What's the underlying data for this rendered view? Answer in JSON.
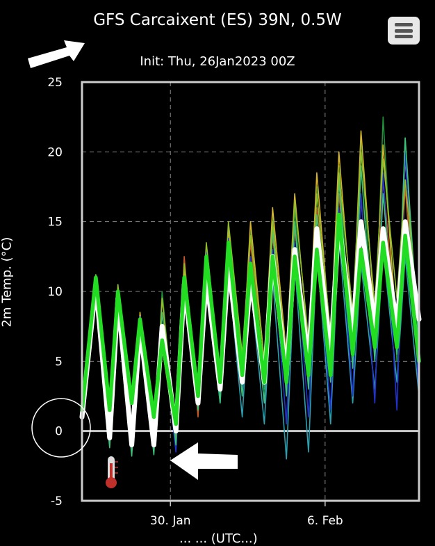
{
  "header": {
    "title": "GFS Carcaixent (ES) 39N, 0.5W",
    "subtitle": "Init: Thu, 26Jan2023 00Z",
    "menu_icon": "hamburger-menu-icon"
  },
  "annotations": {
    "arrow_top_icon": "arrow-up-right-icon",
    "arrow_bottom_icon": "arrow-left-icon",
    "circle_highlight": "zero-tick-highlight",
    "thermometer_icon": "thermometer-icon",
    "xlabel_partial": "...  ...  (UTC...)"
  },
  "colors": {
    "background": "#000000",
    "mean": "#ffffff",
    "control": "#22dd22",
    "member_palette": [
      "#1f8f3a",
      "#2aa0b0",
      "#d4b22a",
      "#c8582a",
      "#2233cc",
      "#3bc47a",
      "#8fbf2a",
      "#1a6fd0"
    ]
  },
  "chart_data": {
    "type": "line",
    "title": "GFS Carcaixent (ES) 39N, 0.5W",
    "subtitle": "Init: Thu, 26Jan2023 00Z",
    "ylabel": "2m Temp. (°C)",
    "xlabel": "",
    "ylim": [
      -5,
      25
    ],
    "yticks": [
      -5,
      0,
      5,
      10,
      15,
      20,
      25
    ],
    "xlim": [
      "2023-01-26T00",
      "2023-02-10T06"
    ],
    "xticks": [
      {
        "date": "2023-01-30",
        "label": "30. Jan"
      },
      {
        "date": "2023-02-06",
        "label": "6. Feb"
      }
    ],
    "grid": true,
    "daily_minmax_min_hour": 6,
    "daily_minmax_max_hour": 15,
    "series": [
      {
        "name": "",
        "role": "control",
        "x": [
          "2023-01-26T00",
          "2023-01-26T15",
          "2023-01-27T06",
          "2023-01-27T15",
          "2023-01-28T06",
          "2023-01-28T15",
          "2023-01-29T06",
          "2023-01-29T15",
          "2023-01-30T06",
          "2023-01-30T15",
          "2023-01-31T06",
          "2023-01-31T15",
          "2023-02-01T06",
          "2023-02-01T15",
          "2023-02-02T06",
          "2023-02-02T15",
          "2023-02-03T06",
          "2023-02-03T15",
          "2023-02-04T06",
          "2023-02-04T15",
          "2023-02-05T06",
          "2023-02-05T15",
          "2023-02-06T06",
          "2023-02-06T15",
          "2023-02-07T06",
          "2023-02-07T15",
          "2023-02-08T06",
          "2023-02-08T15",
          "2023-02-09T06",
          "2023-02-09T15",
          "2023-02-10T06"
        ],
        "values": [
          1.5,
          11.0,
          1.5,
          10.0,
          2.0,
          8.0,
          1.0,
          6.5,
          0.5,
          11.0,
          2.5,
          12.5,
          3.5,
          13.5,
          4.0,
          12.0,
          3.5,
          12.5,
          3.5,
          12.5,
          4.0,
          13.0,
          4.0,
          15.5,
          5.5,
          13.0,
          6.0,
          13.5,
          6.0,
          14.0,
          5.0
        ]
      },
      {
        "name": "",
        "role": "mean",
        "x": [
          "2023-01-26T00",
          "2023-01-26T15",
          "2023-01-27T06",
          "2023-01-27T15",
          "2023-01-28T06",
          "2023-01-28T15",
          "2023-01-29T06",
          "2023-01-29T15",
          "2023-01-30T06",
          "2023-01-30T15",
          "2023-01-31T06",
          "2023-01-31T15",
          "2023-02-01T06",
          "2023-02-01T15",
          "2023-02-02T06",
          "2023-02-02T15",
          "2023-02-03T06",
          "2023-02-03T15",
          "2023-02-04T06",
          "2023-02-04T15",
          "2023-02-05T06",
          "2023-02-05T15",
          "2023-02-06T06",
          "2023-02-06T15",
          "2023-02-07T06",
          "2023-02-07T15",
          "2023-02-08T06",
          "2023-02-08T15",
          "2023-02-09T06",
          "2023-02-09T15",
          "2023-02-10T06"
        ],
        "values": [
          1.0,
          10.5,
          -0.5,
          9.5,
          -1.0,
          7.5,
          -1.0,
          7.5,
          0.0,
          10.5,
          2.0,
          11.0,
          3.0,
          12.0,
          3.5,
          11.0,
          3.5,
          12.5,
          4.0,
          13.0,
          5.0,
          14.5,
          5.5,
          15.0,
          7.0,
          15.0,
          7.5,
          14.5,
          7.5,
          15.0,
          8.0
        ]
      },
      {
        "name": "",
        "role": "member",
        "x": [
          "2023-01-26T00",
          "2023-01-26T15",
          "2023-01-27T06",
          "2023-01-27T15",
          "2023-01-28T06",
          "2023-01-28T15",
          "2023-01-29T06",
          "2023-01-29T15",
          "2023-01-30T06",
          "2023-01-30T15",
          "2023-01-31T06",
          "2023-01-31T15",
          "2023-02-01T06",
          "2023-02-01T15",
          "2023-02-02T06",
          "2023-02-02T15",
          "2023-02-03T06",
          "2023-02-03T15",
          "2023-02-04T06",
          "2023-02-04T15",
          "2023-02-05T06",
          "2023-02-05T15",
          "2023-02-06T06",
          "2023-02-06T15",
          "2023-02-07T06",
          "2023-02-07T15",
          "2023-02-08T06",
          "2023-02-08T15",
          "2023-02-09T06",
          "2023-02-09T15",
          "2023-02-10T06"
        ],
        "values": [
          1.0,
          10.0,
          -1.0,
          9.0,
          -1.5,
          8.5,
          -1.5,
          10.0,
          -0.5,
          12.0,
          1.5,
          13.0,
          2.5,
          14.0,
          3.0,
          14.5,
          3.0,
          15.5,
          3.0,
          16.0,
          3.5,
          17.5,
          4.0,
          19.0,
          5.0,
          21.0,
          5.5,
          22.5,
          5.0,
          21.0,
          4.0
        ]
      },
      {
        "name": "",
        "role": "member",
        "x": [
          "2023-01-26T00",
          "2023-01-26T15",
          "2023-01-27T06",
          "2023-01-27T15",
          "2023-01-28T06",
          "2023-01-28T15",
          "2023-01-29T06",
          "2023-01-29T15",
          "2023-01-30T06",
          "2023-01-30T15",
          "2023-01-31T06",
          "2023-01-31T15",
          "2023-02-01T06",
          "2023-02-01T15",
          "2023-02-02T06",
          "2023-02-02T15",
          "2023-02-03T06",
          "2023-02-03T15",
          "2023-02-04T06",
          "2023-02-04T15",
          "2023-02-05T06",
          "2023-02-05T15",
          "2023-02-06T06",
          "2023-02-06T15",
          "2023-02-07T06",
          "2023-02-07T15",
          "2023-02-08T06",
          "2023-02-08T15",
          "2023-02-09T06",
          "2023-02-09T15",
          "2023-02-10T06"
        ],
        "values": [
          1.2,
          9.5,
          0.0,
          8.5,
          -0.5,
          7.5,
          0.0,
          7.0,
          0.5,
          10.0,
          2.0,
          11.0,
          2.0,
          11.5,
          1.0,
          10.5,
          0.5,
          11.0,
          -2.0,
          12.0,
          -1.5,
          13.0,
          0.5,
          14.0,
          2.0,
          12.0,
          3.0,
          13.0,
          3.5,
          12.5,
          2.5
        ]
      },
      {
        "name": "",
        "role": "member",
        "x": [
          "2023-01-26T00",
          "2023-01-26T15",
          "2023-01-27T06",
          "2023-01-27T15",
          "2023-01-28T06",
          "2023-01-28T15",
          "2023-01-29T06",
          "2023-01-29T15",
          "2023-01-30T06",
          "2023-01-30T15",
          "2023-01-31T06",
          "2023-01-31T15",
          "2023-02-01T06",
          "2023-02-01T15",
          "2023-02-02T06",
          "2023-02-02T15",
          "2023-02-03T06",
          "2023-02-03T15",
          "2023-02-04T06",
          "2023-02-04T15",
          "2023-02-05T06",
          "2023-02-05T15",
          "2023-02-06T06",
          "2023-02-06T15",
          "2023-02-07T06",
          "2023-02-07T15",
          "2023-02-08T06",
          "2023-02-08T15",
          "2023-02-09T06",
          "2023-02-09T15",
          "2023-02-10T06"
        ],
        "values": [
          1.8,
          10.8,
          0.5,
          10.2,
          0.0,
          8.5,
          -0.5,
          6.0,
          -0.5,
          11.5,
          2.5,
          12.0,
          4.0,
          14.5,
          4.5,
          15.0,
          5.0,
          16.0,
          5.5,
          17.0,
          6.0,
          18.5,
          6.5,
          20.0,
          7.5,
          21.5,
          8.0,
          20.5,
          7.0,
          19.5,
          6.5
        ]
      },
      {
        "name": "",
        "role": "member",
        "x": [
          "2023-01-26T00",
          "2023-01-26T15",
          "2023-01-27T06",
          "2023-01-27T15",
          "2023-01-28T06",
          "2023-01-28T15",
          "2023-01-29T06",
          "2023-01-29T15",
          "2023-01-30T06",
          "2023-01-30T15",
          "2023-01-31T06",
          "2023-01-31T15",
          "2023-02-01T06",
          "2023-02-01T15",
          "2023-02-02T06",
          "2023-02-02T15",
          "2023-02-03T06",
          "2023-02-03T15",
          "2023-02-04T06",
          "2023-02-04T15",
          "2023-02-05T06",
          "2023-02-05T15",
          "2023-02-06T06",
          "2023-02-06T15",
          "2023-02-07T06",
          "2023-02-07T15",
          "2023-02-08T06",
          "2023-02-08T15",
          "2023-02-09T06",
          "2023-02-09T15",
          "2023-02-10T06"
        ],
        "values": [
          0.8,
          10.2,
          -0.8,
          9.2,
          -1.2,
          7.8,
          -1.3,
          9.5,
          -1.0,
          12.5,
          1.0,
          12.5,
          3.0,
          13.0,
          4.5,
          13.5,
          4.0,
          14.0,
          4.5,
          14.5,
          5.5,
          16.0,
          6.0,
          17.0,
          6.5,
          16.5,
          7.0,
          18.0,
          6.5,
          17.5,
          4.5
        ]
      },
      {
        "name": "",
        "role": "member",
        "x": [
          "2023-01-26T00",
          "2023-01-26T15",
          "2023-01-27T06",
          "2023-01-27T15",
          "2023-01-28T06",
          "2023-01-28T15",
          "2023-01-29T06",
          "2023-01-29T15",
          "2023-01-30T06",
          "2023-01-30T15",
          "2023-01-31T06",
          "2023-01-31T15",
          "2023-02-01T06",
          "2023-02-01T15",
          "2023-02-02T06",
          "2023-02-02T15",
          "2023-02-03T06",
          "2023-02-03T15",
          "2023-02-04T06",
          "2023-02-04T15",
          "2023-02-05T06",
          "2023-02-05T15",
          "2023-02-06T06",
          "2023-02-06T15",
          "2023-02-07T06",
          "2023-02-07T15",
          "2023-02-08T06",
          "2023-02-08T15",
          "2023-02-09T06",
          "2023-02-09T15",
          "2023-02-10T06"
        ],
        "values": [
          1.3,
          10.5,
          0.2,
          9.8,
          -0.2,
          8.2,
          0.5,
          7.5,
          -1.5,
          11.0,
          3.0,
          12.8,
          3.5,
          13.8,
          3.0,
          12.5,
          2.0,
          13.0,
          0.5,
          13.5,
          1.0,
          14.0,
          1.5,
          16.0,
          2.5,
          17.0,
          2.0,
          18.5,
          1.5,
          20.0,
          2.5
        ]
      },
      {
        "name": "",
        "role": "member",
        "x": [
          "2023-01-26T00",
          "2023-01-26T15",
          "2023-01-27T06",
          "2023-01-27T15",
          "2023-01-28T06",
          "2023-01-28T15",
          "2023-01-29T06",
          "2023-01-29T15",
          "2023-01-30T06",
          "2023-01-30T15",
          "2023-01-31T06",
          "2023-01-31T15",
          "2023-02-01T06",
          "2023-02-01T15",
          "2023-02-02T06",
          "2023-02-02T15",
          "2023-02-03T06",
          "2023-02-03T15",
          "2023-02-04T06",
          "2023-02-04T15",
          "2023-02-05T06",
          "2023-02-05T15",
          "2023-02-06T06",
          "2023-02-06T15",
          "2023-02-07T06",
          "2023-02-07T15",
          "2023-02-08T06",
          "2023-02-08T15",
          "2023-02-09T06",
          "2023-02-09T15",
          "2023-02-10T06"
        ],
        "values": [
          0.5,
          9.8,
          -1.2,
          8.8,
          -1.8,
          8.0,
          -1.7,
          8.5,
          -1.0,
          11.0,
          1.5,
          11.5,
          2.0,
          12.5,
          2.5,
          12.0,
          2.0,
          14.5,
          2.5,
          15.0,
          3.0,
          15.5,
          3.5,
          18.0,
          4.5,
          19.0,
          5.0,
          17.0,
          5.5,
          21.0,
          6.0
        ]
      },
      {
        "name": "",
        "role": "member",
        "x": [
          "2023-01-26T00",
          "2023-01-26T15",
          "2023-01-27T06",
          "2023-01-27T15",
          "2023-01-28T06",
          "2023-01-28T15",
          "2023-01-29T06",
          "2023-01-29T15",
          "2023-01-30T06",
          "2023-01-30T15",
          "2023-01-31T06",
          "2023-01-31T15",
          "2023-02-01T06",
          "2023-02-01T15",
          "2023-02-02T06",
          "2023-02-02T15",
          "2023-02-03T06",
          "2023-02-03T15",
          "2023-02-04T06",
          "2023-02-04T15",
          "2023-02-05T06",
          "2023-02-05T15",
          "2023-02-06T06",
          "2023-02-06T15",
          "2023-02-07T06",
          "2023-02-07T15",
          "2023-02-08T06",
          "2023-02-08T15",
          "2023-02-09T06",
          "2023-02-09T15",
          "2023-02-10T06"
        ],
        "values": [
          1.6,
          11.2,
          0.8,
          10.5,
          0.5,
          8.0,
          0.0,
          9.5,
          0.0,
          12.0,
          3.0,
          13.5,
          4.0,
          15.0,
          5.5,
          14.0,
          5.0,
          15.0,
          5.0,
          16.5,
          6.5,
          17.0,
          7.0,
          18.5,
          8.5,
          20.0,
          9.0,
          19.5,
          9.5,
          18.0,
          7.5
        ]
      }
    ]
  }
}
